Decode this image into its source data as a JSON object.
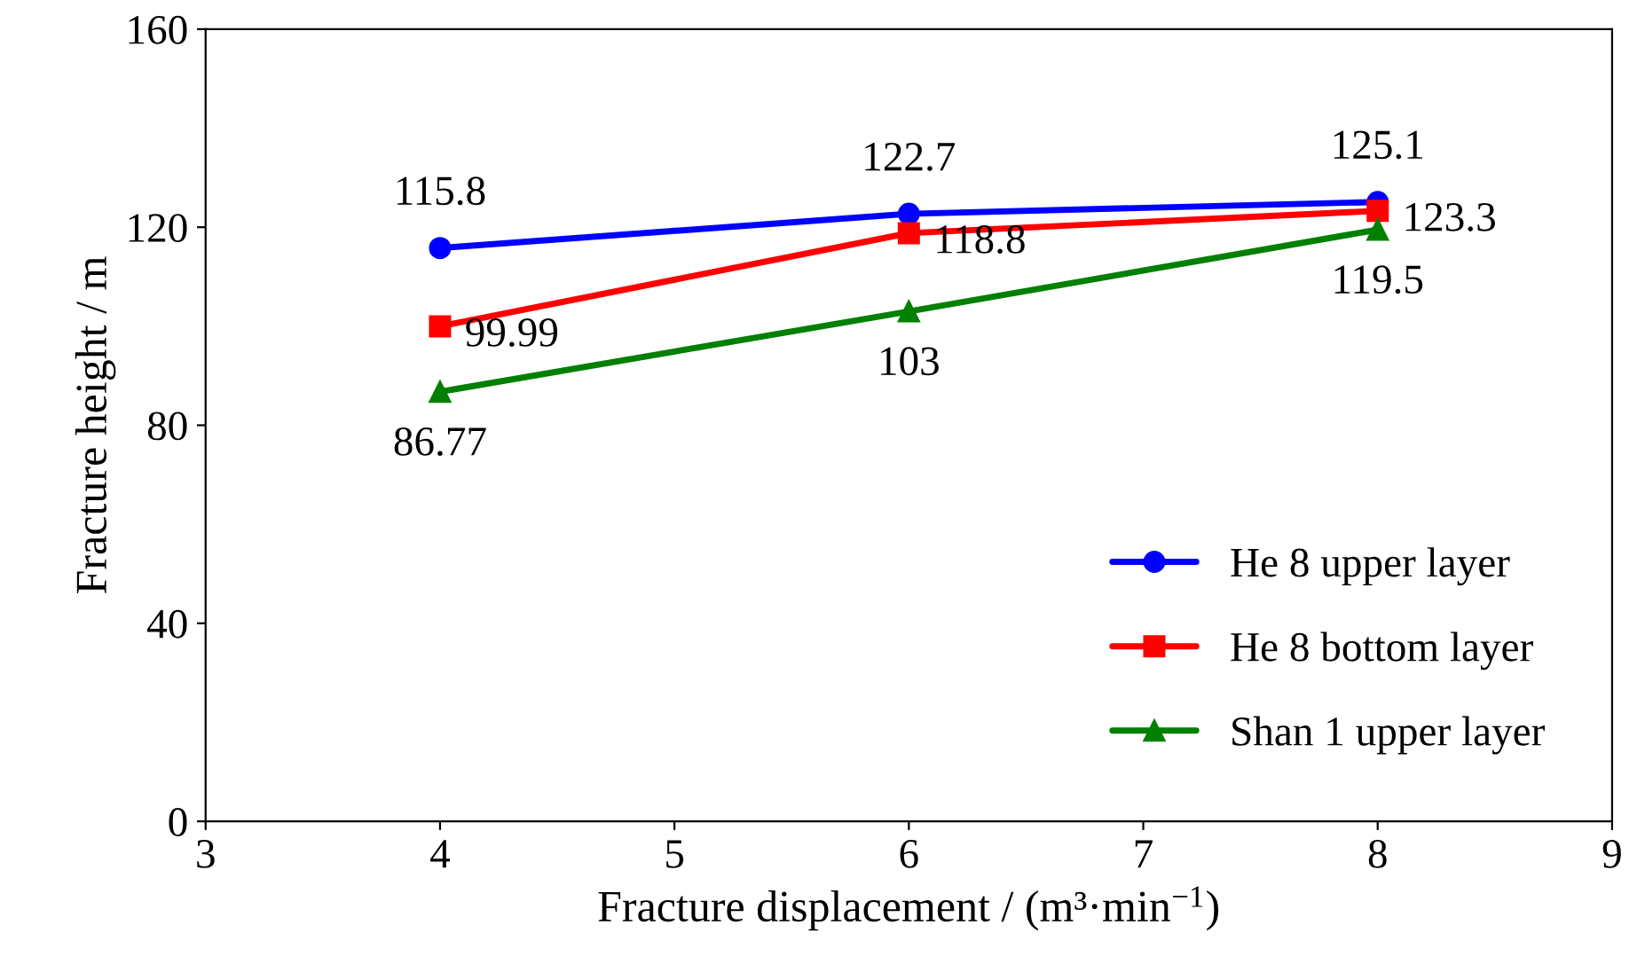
{
  "chart_data": {
    "type": "line",
    "xlabel": "Fracture displacement / (m³·min$^{−1}$)",
    "ylabel": "Fracture height / m",
    "x": [
      4,
      6,
      8
    ],
    "series": [
      {
        "name": "He 8 upper layer",
        "color": "#0000ff",
        "marker": "circle",
        "values": [
          115.8,
          122.7,
          125.1
        ]
      },
      {
        "name": "He 8 bottom layer",
        "color": "#ff0000",
        "marker": "square",
        "values": [
          99.99,
          118.8,
          123.3
        ]
      },
      {
        "name": "Shan 1 upper layer",
        "color": "#008000",
        "marker": "triangle",
        "values": [
          86.77,
          103,
          119.5
        ]
      }
    ],
    "xlim": [
      3,
      9
    ],
    "xticks": [
      3,
      4,
      5,
      6,
      7,
      8,
      9
    ],
    "ylim": [
      0,
      160
    ],
    "yticks": [
      0,
      40,
      80,
      120,
      160
    ],
    "grid": false,
    "legend": "bottom right",
    "data_labels": true,
    "line_style": "solid"
  }
}
